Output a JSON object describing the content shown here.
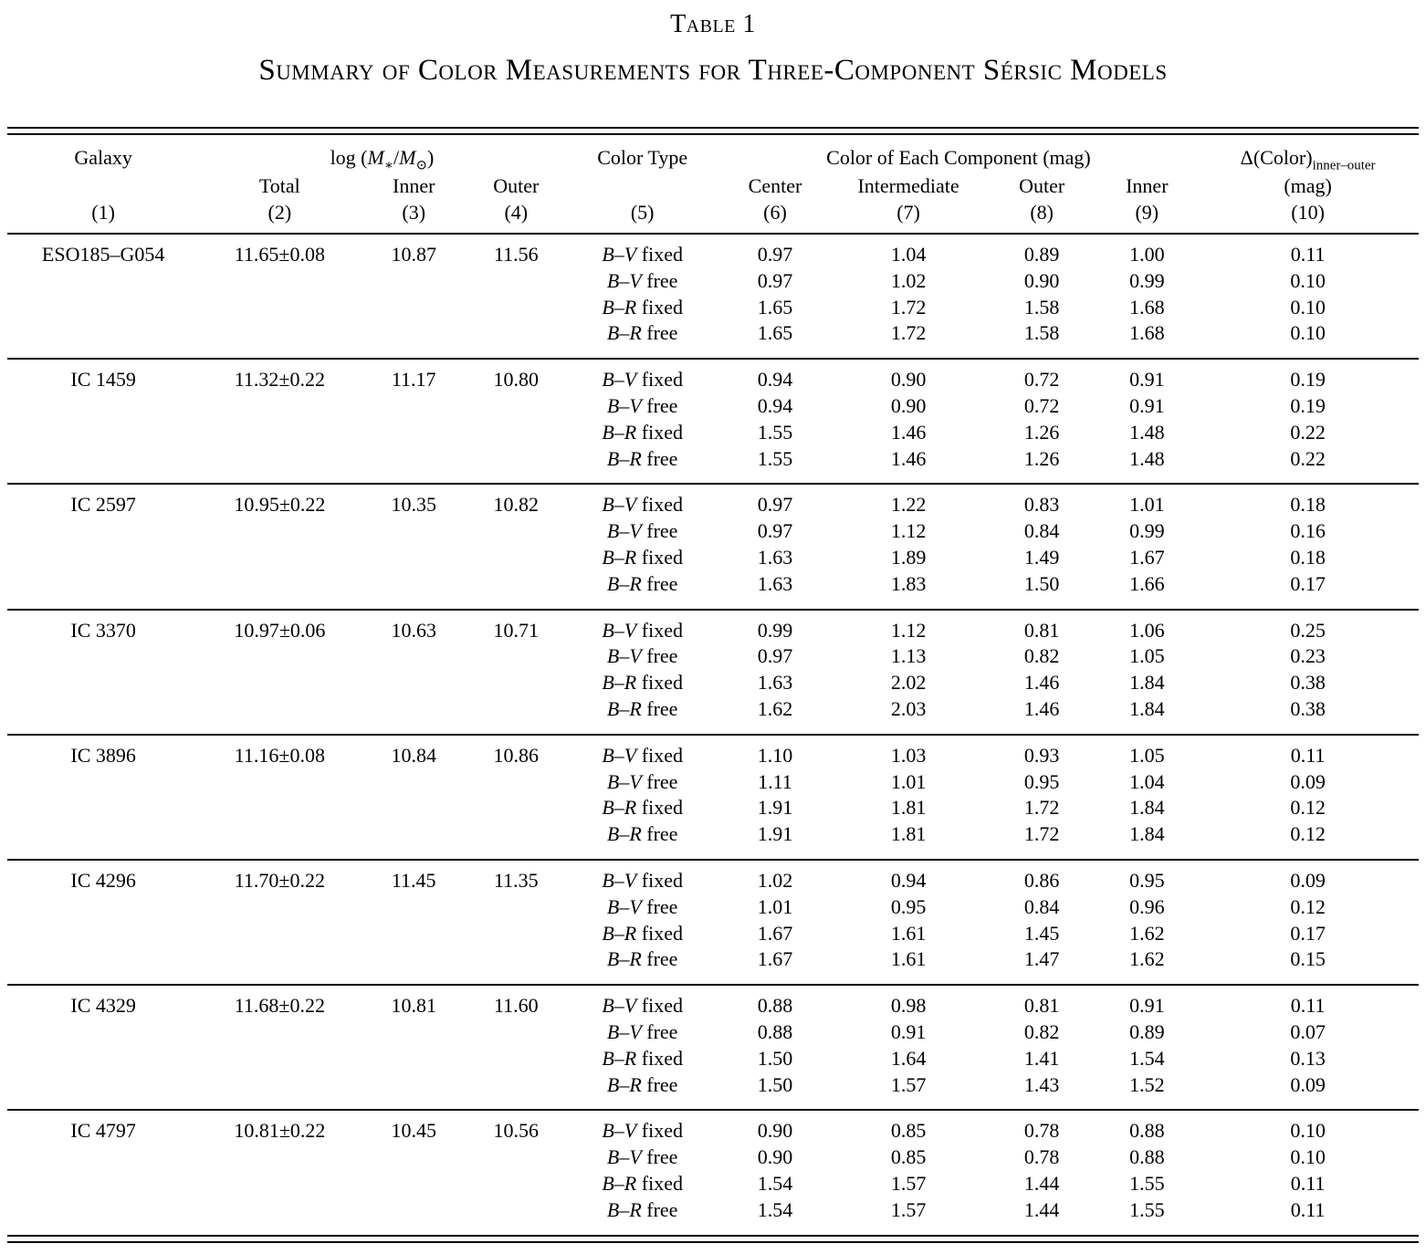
{
  "title": "Table 1",
  "subtitle": "Summary of Color Measurements for Three-Component Sérsic Models",
  "header": {
    "galaxy": "Galaxy",
    "logmass": {
      "pre": "log (",
      "m": "M",
      "star": "∗",
      "slash": "/",
      "m2": "M",
      "sun": "⊙",
      "post": ")"
    },
    "color_type": "Color Type",
    "component_group": "Color of Each Component (mag)",
    "delta": {
      "main": "Δ(Color)",
      "sub": "inner–outer",
      "unit": "(mag)"
    },
    "sub": {
      "total": "Total",
      "inner": "Inner",
      "outer": "Outer",
      "center": "Center",
      "intermediate": "Intermediate",
      "outer2": "Outer",
      "inner2": "Inner"
    },
    "numbers": [
      "(1)",
      "(2)",
      "(3)",
      "(4)",
      "(5)",
      "(6)",
      "(7)",
      "(8)",
      "(9)",
      "(10)"
    ]
  },
  "galaxies": [
    {
      "name": "ESO185–G054",
      "log_mass": {
        "total": "11.65±0.08",
        "inner": "10.87",
        "outer": "11.56"
      },
      "rows": [
        {
          "band": "B–V",
          "mode": "fixed",
          "center": "0.97",
          "intermediate": "1.04",
          "outer": "0.89",
          "inner": "1.00",
          "delta": "0.11"
        },
        {
          "band": "B–V",
          "mode": "free",
          "center": "0.97",
          "intermediate": "1.02",
          "outer": "0.90",
          "inner": "0.99",
          "delta": "0.10"
        },
        {
          "band": "B–R",
          "mode": "fixed",
          "center": "1.65",
          "intermediate": "1.72",
          "outer": "1.58",
          "inner": "1.68",
          "delta": "0.10"
        },
        {
          "band": "B–R",
          "mode": "free",
          "center": "1.65",
          "intermediate": "1.72",
          "outer": "1.58",
          "inner": "1.68",
          "delta": "0.10"
        }
      ]
    },
    {
      "name": "IC 1459",
      "log_mass": {
        "total": "11.32±0.22",
        "inner": "11.17",
        "outer": "10.80"
      },
      "rows": [
        {
          "band": "B–V",
          "mode": "fixed",
          "center": "0.94",
          "intermediate": "0.90",
          "outer": "0.72",
          "inner": "0.91",
          "delta": "0.19"
        },
        {
          "band": "B–V",
          "mode": "free",
          "center": "0.94",
          "intermediate": "0.90",
          "outer": "0.72",
          "inner": "0.91",
          "delta": "0.19"
        },
        {
          "band": "B–R",
          "mode": "fixed",
          "center": "1.55",
          "intermediate": "1.46",
          "outer": "1.26",
          "inner": "1.48",
          "delta": "0.22"
        },
        {
          "band": "B–R",
          "mode": "free",
          "center": "1.55",
          "intermediate": "1.46",
          "outer": "1.26",
          "inner": "1.48",
          "delta": "0.22"
        }
      ]
    },
    {
      "name": "IC 2597",
      "log_mass": {
        "total": "10.95±0.22",
        "inner": "10.35",
        "outer": "10.82"
      },
      "rows": [
        {
          "band": "B–V",
          "mode": "fixed",
          "center": "0.97",
          "intermediate": "1.22",
          "outer": "0.83",
          "inner": "1.01",
          "delta": "0.18"
        },
        {
          "band": "B–V",
          "mode": "free",
          "center": "0.97",
          "intermediate": "1.12",
          "outer": "0.84",
          "inner": "0.99",
          "delta": "0.16"
        },
        {
          "band": "B–R",
          "mode": "fixed",
          "center": "1.63",
          "intermediate": "1.89",
          "outer": "1.49",
          "inner": "1.67",
          "delta": "0.18"
        },
        {
          "band": "B–R",
          "mode": "free",
          "center": "1.63",
          "intermediate": "1.83",
          "outer": "1.50",
          "inner": "1.66",
          "delta": "0.17"
        }
      ]
    },
    {
      "name": "IC 3370",
      "log_mass": {
        "total": "10.97±0.06",
        "inner": "10.63",
        "outer": "10.71"
      },
      "rows": [
        {
          "band": "B–V",
          "mode": "fixed",
          "center": "0.99",
          "intermediate": "1.12",
          "outer": "0.81",
          "inner": "1.06",
          "delta": "0.25"
        },
        {
          "band": "B–V",
          "mode": "free",
          "center": "0.97",
          "intermediate": "1.13",
          "outer": "0.82",
          "inner": "1.05",
          "delta": "0.23"
        },
        {
          "band": "B–R",
          "mode": "fixed",
          "center": "1.63",
          "intermediate": "2.02",
          "outer": "1.46",
          "inner": "1.84",
          "delta": "0.38"
        },
        {
          "band": "B–R",
          "mode": "free",
          "center": "1.62",
          "intermediate": "2.03",
          "outer": "1.46",
          "inner": "1.84",
          "delta": "0.38"
        }
      ]
    },
    {
      "name": "IC 3896",
      "log_mass": {
        "total": "11.16±0.08",
        "inner": "10.84",
        "outer": "10.86"
      },
      "rows": [
        {
          "band": "B–V",
          "mode": "fixed",
          "center": "1.10",
          "intermediate": "1.03",
          "outer": "0.93",
          "inner": "1.05",
          "delta": "0.11"
        },
        {
          "band": "B–V",
          "mode": "free",
          "center": "1.11",
          "intermediate": "1.01",
          "outer": "0.95",
          "inner": "1.04",
          "delta": "0.09"
        },
        {
          "band": "B–R",
          "mode": "fixed",
          "center": "1.91",
          "intermediate": "1.81",
          "outer": "1.72",
          "inner": "1.84",
          "delta": "0.12"
        },
        {
          "band": "B–R",
          "mode": "free",
          "center": "1.91",
          "intermediate": "1.81",
          "outer": "1.72",
          "inner": "1.84",
          "delta": "0.12"
        }
      ]
    },
    {
      "name": "IC 4296",
      "log_mass": {
        "total": "11.70±0.22",
        "inner": "11.45",
        "outer": "11.35"
      },
      "rows": [
        {
          "band": "B–V",
          "mode": "fixed",
          "center": "1.02",
          "intermediate": "0.94",
          "outer": "0.86",
          "inner": "0.95",
          "delta": "0.09"
        },
        {
          "band": "B–V",
          "mode": "free",
          "center": "1.01",
          "intermediate": "0.95",
          "outer": "0.84",
          "inner": "0.96",
          "delta": "0.12"
        },
        {
          "band": "B–R",
          "mode": "fixed",
          "center": "1.67",
          "intermediate": "1.61",
          "outer": "1.45",
          "inner": "1.62",
          "delta": "0.17"
        },
        {
          "band": "B–R",
          "mode": "free",
          "center": "1.67",
          "intermediate": "1.61",
          "outer": "1.47",
          "inner": "1.62",
          "delta": "0.15"
        }
      ]
    },
    {
      "name": "IC 4329",
      "log_mass": {
        "total": "11.68±0.22",
        "inner": "10.81",
        "outer": "11.60"
      },
      "rows": [
        {
          "band": "B–V",
          "mode": "fixed",
          "center": "0.88",
          "intermediate": "0.98",
          "outer": "0.81",
          "inner": "0.91",
          "delta": "0.11"
        },
        {
          "band": "B–V",
          "mode": "free",
          "center": "0.88",
          "intermediate": "0.91",
          "outer": "0.82",
          "inner": "0.89",
          "delta": "0.07"
        },
        {
          "band": "B–R",
          "mode": "fixed",
          "center": "1.50",
          "intermediate": "1.64",
          "outer": "1.41",
          "inner": "1.54",
          "delta": "0.13"
        },
        {
          "band": "B–R",
          "mode": "free",
          "center": "1.50",
          "intermediate": "1.57",
          "outer": "1.43",
          "inner": "1.52",
          "delta": "0.09"
        }
      ]
    },
    {
      "name": "IC 4797",
      "log_mass": {
        "total": "10.81±0.22",
        "inner": "10.45",
        "outer": "10.56"
      },
      "rows": [
        {
          "band": "B–V",
          "mode": "fixed",
          "center": "0.90",
          "intermediate": "0.85",
          "outer": "0.78",
          "inner": "0.88",
          "delta": "0.10"
        },
        {
          "band": "B–V",
          "mode": "free",
          "center": "0.90",
          "intermediate": "0.85",
          "outer": "0.78",
          "inner": "0.88",
          "delta": "0.10"
        },
        {
          "band": "B–R",
          "mode": "fixed",
          "center": "1.54",
          "intermediate": "1.57",
          "outer": "1.44",
          "inner": "1.55",
          "delta": "0.11"
        },
        {
          "band": "B–R",
          "mode": "free",
          "center": "1.54",
          "intermediate": "1.57",
          "outer": "1.44",
          "inner": "1.55",
          "delta": "0.11"
        }
      ]
    }
  ]
}
